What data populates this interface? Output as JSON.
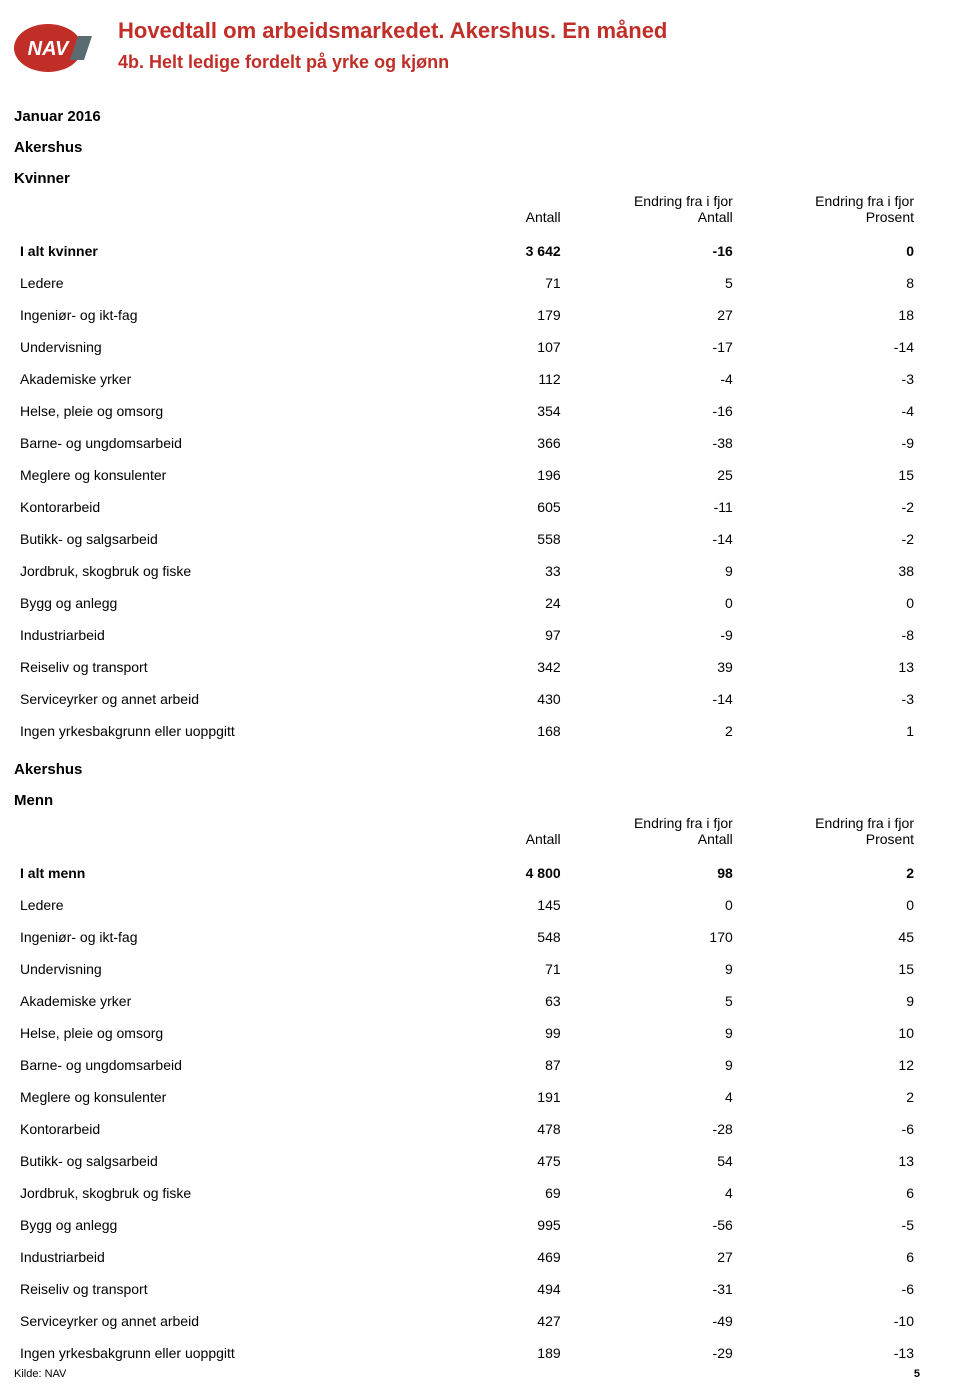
{
  "header": {
    "title": "Hovedtall om arbeidsmarkedet. Akershus. En måned",
    "subtitle": "4b. Helt ledige fordelt på yrke og kjønn"
  },
  "period": "Januar 2016",
  "region": "Akershus",
  "columns": {
    "c1_label": "Antall",
    "c2_line1": "Endring fra i fjor",
    "c2_line2": "Antall",
    "c3_line1": "Endring fra i fjor",
    "c3_line2": "Prosent"
  },
  "women": {
    "label": "Kvinner",
    "total": {
      "label": "I alt kvinner",
      "antall": "3 642",
      "endr_antall": "-16",
      "endr_prosent": "0"
    },
    "rows": [
      {
        "label": "Ledere",
        "antall": "71",
        "endr_antall": "5",
        "endr_prosent": "8"
      },
      {
        "label": "Ingeniør- og ikt-fag",
        "antall": "179",
        "endr_antall": "27",
        "endr_prosent": "18"
      },
      {
        "label": "Undervisning",
        "antall": "107",
        "endr_antall": "-17",
        "endr_prosent": "-14"
      },
      {
        "label": "Akademiske yrker",
        "antall": "112",
        "endr_antall": "-4",
        "endr_prosent": "-3"
      },
      {
        "label": "Helse, pleie og omsorg",
        "antall": "354",
        "endr_antall": "-16",
        "endr_prosent": "-4"
      },
      {
        "label": "Barne- og ungdomsarbeid",
        "antall": "366",
        "endr_antall": "-38",
        "endr_prosent": "-9"
      },
      {
        "label": "Meglere og konsulenter",
        "antall": "196",
        "endr_antall": "25",
        "endr_prosent": "15"
      },
      {
        "label": "Kontorarbeid",
        "antall": "605",
        "endr_antall": "-11",
        "endr_prosent": "-2"
      },
      {
        "label": "Butikk- og salgsarbeid",
        "antall": "558",
        "endr_antall": "-14",
        "endr_prosent": "-2"
      },
      {
        "label": "Jordbruk, skogbruk og fiske",
        "antall": "33",
        "endr_antall": "9",
        "endr_prosent": "38"
      },
      {
        "label": "Bygg og anlegg",
        "antall": "24",
        "endr_antall": "0",
        "endr_prosent": "0"
      },
      {
        "label": "Industriarbeid",
        "antall": "97",
        "endr_antall": "-9",
        "endr_prosent": "-8"
      },
      {
        "label": "Reiseliv og transport",
        "antall": "342",
        "endr_antall": "39",
        "endr_prosent": "13"
      },
      {
        "label": "Serviceyrker og annet arbeid",
        "antall": "430",
        "endr_antall": "-14",
        "endr_prosent": "-3"
      },
      {
        "label": "Ingen yrkesbakgrunn eller uoppgitt",
        "antall": "168",
        "endr_antall": "2",
        "endr_prosent": "1"
      }
    ]
  },
  "men": {
    "label": "Menn",
    "total": {
      "label": "I alt menn",
      "antall": "4 800",
      "endr_antall": "98",
      "endr_prosent": "2"
    },
    "rows": [
      {
        "label": "Ledere",
        "antall": "145",
        "endr_antall": "0",
        "endr_prosent": "0"
      },
      {
        "label": "Ingeniør- og ikt-fag",
        "antall": "548",
        "endr_antall": "170",
        "endr_prosent": "45"
      },
      {
        "label": "Undervisning",
        "antall": "71",
        "endr_antall": "9",
        "endr_prosent": "15"
      },
      {
        "label": "Akademiske yrker",
        "antall": "63",
        "endr_antall": "5",
        "endr_prosent": "9"
      },
      {
        "label": "Helse, pleie og omsorg",
        "antall": "99",
        "endr_antall": "9",
        "endr_prosent": "10"
      },
      {
        "label": "Barne- og ungdomsarbeid",
        "antall": "87",
        "endr_antall": "9",
        "endr_prosent": "12"
      },
      {
        "label": "Meglere og konsulenter",
        "antall": "191",
        "endr_antall": "4",
        "endr_prosent": "2"
      },
      {
        "label": "Kontorarbeid",
        "antall": "478",
        "endr_antall": "-28",
        "endr_prosent": "-6"
      },
      {
        "label": "Butikk- og salgsarbeid",
        "antall": "475",
        "endr_antall": "54",
        "endr_prosent": "13"
      },
      {
        "label": "Jordbruk, skogbruk og fiske",
        "antall": "69",
        "endr_antall": "4",
        "endr_prosent": "6"
      },
      {
        "label": "Bygg og anlegg",
        "antall": "995",
        "endr_antall": "-56",
        "endr_prosent": "-5"
      },
      {
        "label": "Industriarbeid",
        "antall": "469",
        "endr_antall": "27",
        "endr_prosent": "6"
      },
      {
        "label": "Reiseliv og transport",
        "antall": "494",
        "endr_antall": "-31",
        "endr_prosent": "-6"
      },
      {
        "label": "Serviceyrker og annet arbeid",
        "antall": "427",
        "endr_antall": "-49",
        "endr_prosent": "-10"
      },
      {
        "label": "Ingen yrkesbakgrunn eller uoppgitt",
        "antall": "189",
        "endr_antall": "-29",
        "endr_prosent": "-13"
      }
    ]
  },
  "footer": {
    "source": "Kilde: NAV",
    "page": "5"
  },
  "colors": {
    "brand_red": "#c12e28",
    "text": "#000000",
    "background": "#ffffff"
  }
}
